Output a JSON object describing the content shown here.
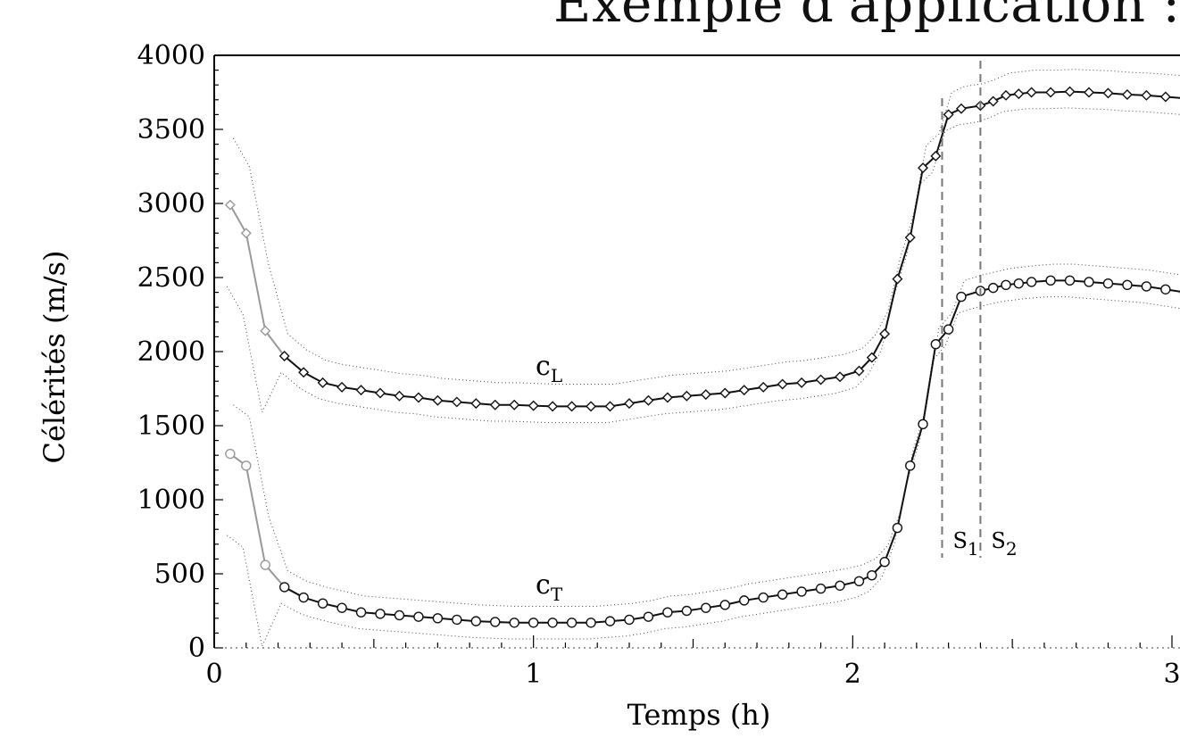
{
  "slide": {
    "title": "Exemple d'application : l"
  },
  "chart_data": {
    "type": "line",
    "xlabel": "Temps (h)",
    "ylabel": "Célérités (m/s)",
    "xlim": [
      0,
      3
    ],
    "ylim": [
      0,
      4000
    ],
    "x_ticks": [
      "0",
      "1",
      "2",
      "3"
    ],
    "y_ticks": [
      "0",
      "500",
      "1000",
      "1500",
      "2000",
      "2500",
      "3000",
      "3500",
      "4000"
    ],
    "series": [
      {
        "name": "cL",
        "label_main": "c",
        "label_sub": "L",
        "marker": "diamond",
        "x": [
          0.05,
          0.1,
          0.16,
          0.22,
          0.28,
          0.34,
          0.4,
          0.46,
          0.52,
          0.58,
          0.64,
          0.7,
          0.76,
          0.82,
          0.88,
          0.94,
          1.0,
          1.06,
          1.12,
          1.18,
          1.24,
          1.3,
          1.36,
          1.42,
          1.48,
          1.54,
          1.6,
          1.66,
          1.72,
          1.78,
          1.84,
          1.9,
          1.96,
          2.02,
          2.06,
          2.1,
          2.14,
          2.18,
          2.22,
          2.26,
          2.3,
          2.34,
          2.4,
          2.44,
          2.48,
          2.52,
          2.56,
          2.62,
          2.68,
          2.74,
          2.8,
          2.86,
          2.92,
          2.98,
          3.04
        ],
        "y": [
          2990,
          2800,
          2140,
          1970,
          1860,
          1790,
          1760,
          1740,
          1720,
          1700,
          1690,
          1670,
          1660,
          1650,
          1640,
          1640,
          1635,
          1630,
          1630,
          1630,
          1630,
          1650,
          1670,
          1690,
          1700,
          1710,
          1720,
          1740,
          1760,
          1780,
          1790,
          1810,
          1830,
          1870,
          1960,
          2120,
          2490,
          2770,
          3240,
          3320,
          3600,
          3640,
          3660,
          3690,
          3730,
          3740,
          3750,
          3750,
          3755,
          3750,
          3745,
          3735,
          3730,
          3720,
          3710
        ]
      },
      {
        "name": "cT",
        "label_main": "c",
        "label_sub": "T",
        "marker": "circle",
        "x": [
          0.05,
          0.1,
          0.16,
          0.22,
          0.28,
          0.34,
          0.4,
          0.46,
          0.52,
          0.58,
          0.64,
          0.7,
          0.76,
          0.82,
          0.88,
          0.94,
          1.0,
          1.06,
          1.12,
          1.18,
          1.24,
          1.3,
          1.36,
          1.42,
          1.48,
          1.54,
          1.6,
          1.66,
          1.72,
          1.78,
          1.84,
          1.9,
          1.96,
          2.02,
          2.06,
          2.1,
          2.14,
          2.18,
          2.22,
          2.26,
          2.3,
          2.34,
          2.4,
          2.44,
          2.48,
          2.52,
          2.56,
          2.62,
          2.68,
          2.74,
          2.8,
          2.86,
          2.92,
          2.98,
          3.04
        ],
        "y": [
          1310,
          1230,
          560,
          410,
          340,
          300,
          270,
          240,
          230,
          220,
          210,
          200,
          190,
          180,
          175,
          170,
          170,
          170,
          170,
          170,
          180,
          190,
          210,
          240,
          250,
          270,
          290,
          320,
          340,
          360,
          380,
          400,
          420,
          450,
          490,
          580,
          810,
          1230,
          1510,
          2050,
          2150,
          2370,
          2410,
          2430,
          2450,
          2460,
          2470,
          2480,
          2480,
          2470,
          2460,
          2450,
          2440,
          2420,
          2400
        ]
      }
    ],
    "vertical_markers": [
      {
        "label_main": "S",
        "label_sub": "1",
        "x": 2.28
      },
      {
        "label_main": "S",
        "label_sub": "2",
        "x": 2.4
      }
    ],
    "grid": false
  }
}
